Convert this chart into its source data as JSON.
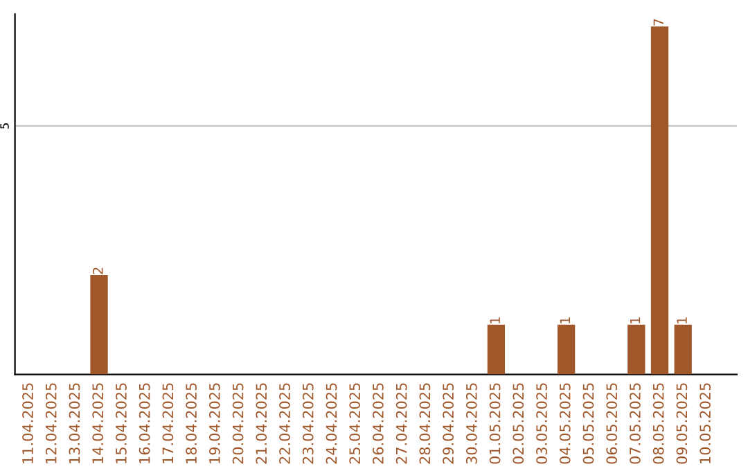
{
  "chart_data": {
    "type": "bar",
    "categories": [
      "11.04.2025",
      "12.04.2025",
      "13.04.2025",
      "14.04.2025",
      "15.04.2025",
      "16.04.2025",
      "17.04.2025",
      "18.04.2025",
      "19.04.2025",
      "20.04.2025",
      "21.04.2025",
      "22.04.2025",
      "23.04.2025",
      "24.04.2025",
      "25.04.2025",
      "26.04.2025",
      "27.04.2025",
      "28.04.2025",
      "29.04.2025",
      "30.04.2025",
      "01.05.2025",
      "02.05.2025",
      "03.05.2025",
      "04.05.2025",
      "05.05.2025",
      "06.05.2025",
      "07.05.2025",
      "08.05.2025",
      "09.05.2025",
      "10.05.2025"
    ],
    "values": [
      0,
      0,
      0,
      2,
      0,
      0,
      0,
      0,
      0,
      0,
      0,
      0,
      0,
      0,
      0,
      0,
      0,
      0,
      0,
      0,
      1,
      0,
      0,
      1,
      0,
      0,
      1,
      7,
      1,
      0
    ],
    "value_labels": [
      null,
      null,
      null,
      "2",
      null,
      null,
      null,
      null,
      null,
      null,
      null,
      null,
      null,
      null,
      null,
      null,
      null,
      null,
      null,
      null,
      "1",
      null,
      null,
      "1",
      null,
      null,
      "1",
      "7",
      "1",
      null
    ],
    "color": "#a0572a",
    "ylim": [
      0,
      7.25
    ],
    "yticks": [
      5
    ],
    "grid": "y",
    "legend": false
  }
}
